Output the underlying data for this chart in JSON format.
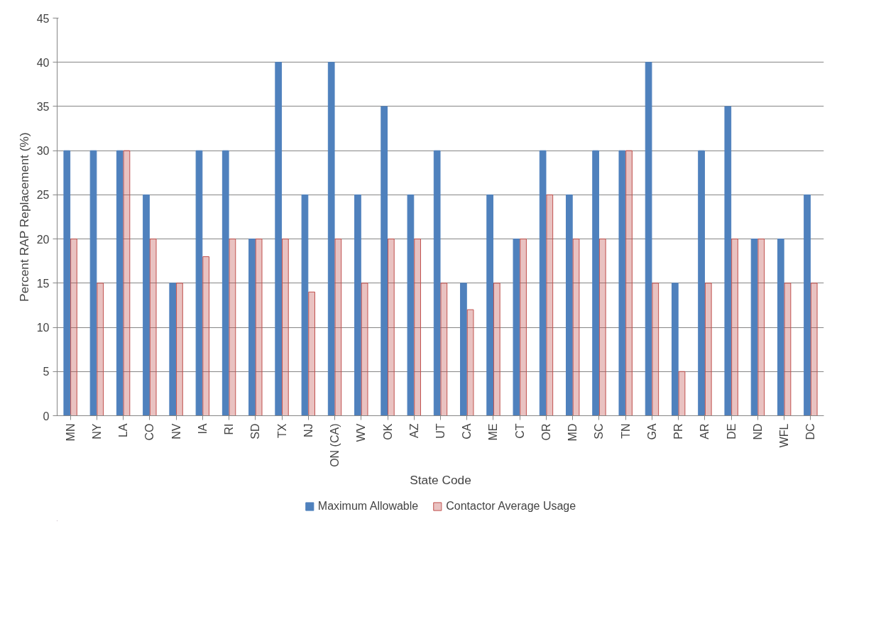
{
  "chart_data": {
    "type": "bar",
    "xlabel": "State Code",
    "ylabel": "Percent RAP Replacement (%)",
    "categories": [
      "MN",
      "NY",
      "LA",
      "CO",
      "NV",
      "IA",
      "RI",
      "SD",
      "TX",
      "NJ",
      "ON (CA)",
      "WV",
      "OK",
      "AZ",
      "UT",
      "CA",
      "ME",
      "CT",
      "OR",
      "MD",
      "SC",
      "TN",
      "GA",
      "PR",
      "AR",
      "DE",
      "ND",
      "WFL",
      "DC"
    ],
    "series": [
      {
        "name": "Maximum Allowable",
        "color": "#4f81bd",
        "values": [
          30,
          30,
          30,
          25,
          15,
          30,
          30,
          20,
          40,
          25,
          40,
          25,
          35,
          25,
          30,
          15,
          25,
          20,
          30,
          25,
          30,
          30,
          40,
          15,
          30,
          35,
          20,
          20,
          25
        ]
      },
      {
        "name": "Contactor Average Usage",
        "color": "#c0504d",
        "values": [
          20,
          15,
          30,
          20,
          15,
          18,
          20,
          20,
          20,
          14,
          20,
          15,
          20,
          20,
          15,
          12,
          15,
          20,
          25,
          20,
          20,
          30,
          15,
          5,
          15,
          20,
          20,
          15,
          15
        ]
      }
    ],
    "ylim": [
      0,
      45
    ],
    "yticks": [
      0,
      5,
      10,
      15,
      20,
      25,
      30,
      35,
      40,
      45
    ],
    "grid": "y",
    "legend": "bottom"
  }
}
